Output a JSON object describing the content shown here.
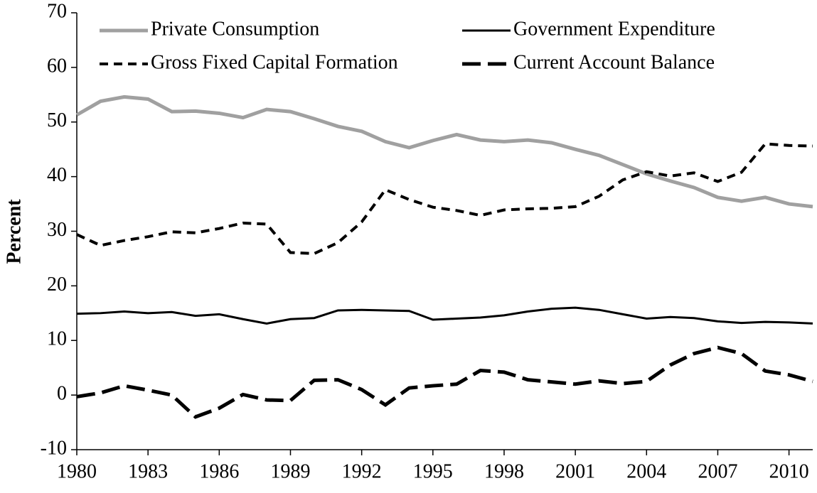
{
  "chart_data": {
    "type": "line",
    "y_label": "Percent",
    "x": [
      1980,
      1981,
      1982,
      1983,
      1984,
      1985,
      1986,
      1987,
      1988,
      1989,
      1990,
      1991,
      1992,
      1993,
      1994,
      1995,
      1996,
      1997,
      1998,
      1999,
      2000,
      2001,
      2002,
      2003,
      2004,
      2005,
      2006,
      2007,
      2008,
      2009,
      2010,
      2011
    ],
    "xlim": [
      1980,
      2011
    ],
    "xticks": [
      1980,
      1983,
      1986,
      1989,
      1992,
      1995,
      1998,
      2001,
      2004,
      2007,
      2010
    ],
    "ylim": [
      -10,
      70
    ],
    "yticks": [
      -10,
      0,
      10,
      20,
      30,
      40,
      50,
      60,
      70
    ],
    "grid": false,
    "legend": "top",
    "series": [
      {
        "name": "Private Consumption",
        "color": "#a0a0a0",
        "dash": "solid",
        "values": [
          51.3,
          53.8,
          54.6,
          54.2,
          51.9,
          52.0,
          51.6,
          50.8,
          52.3,
          51.9,
          50.6,
          49.2,
          48.3,
          46.4,
          45.3,
          46.6,
          47.7,
          46.7,
          46.4,
          46.7,
          46.2,
          45.0,
          43.9,
          42.2,
          40.5,
          39.2,
          38.0,
          36.2,
          35.5,
          36.2,
          35.0,
          34.5
        ]
      },
      {
        "name": "Government Expenditure",
        "color": "#000000",
        "dash": "solid",
        "values": [
          14.9,
          15.0,
          15.3,
          15.0,
          15.2,
          14.5,
          14.8,
          13.9,
          13.1,
          13.9,
          14.1,
          15.5,
          15.6,
          15.5,
          15.4,
          13.8,
          14.0,
          14.2,
          14.6,
          15.3,
          15.8,
          16.0,
          15.6,
          14.8,
          14.0,
          14.3,
          14.1,
          13.5,
          13.2,
          13.4,
          13.3,
          13.1
        ]
      },
      {
        "name": "Gross Fixed Capital Formation",
        "color": "#000000",
        "dash": "dash",
        "values": [
          29.4,
          27.4,
          28.3,
          29.0,
          29.9,
          29.7,
          30.5,
          31.5,
          31.3,
          26.1,
          25.9,
          27.9,
          31.7,
          37.6,
          35.8,
          34.4,
          33.8,
          32.9,
          33.9,
          34.1,
          34.2,
          34.5,
          36.4,
          39.4,
          40.9,
          40.1,
          40.7,
          39.1,
          40.8,
          46.0,
          45.7,
          45.6
        ]
      },
      {
        "name": "Current Account Balance",
        "color": "#000000",
        "dash": "longdash",
        "values": [
          -0.3,
          0.4,
          1.7,
          0.9,
          0.0,
          -4.0,
          -2.4,
          0.1,
          -0.9,
          -1.0,
          2.7,
          2.8,
          1.0,
          -1.8,
          1.3,
          1.7,
          2.0,
          4.5,
          4.2,
          2.8,
          2.4,
          2.0,
          2.6,
          2.1,
          2.5,
          5.5,
          7.6,
          8.7,
          7.6,
          4.4,
          3.7,
          2.5
        ]
      }
    ]
  }
}
